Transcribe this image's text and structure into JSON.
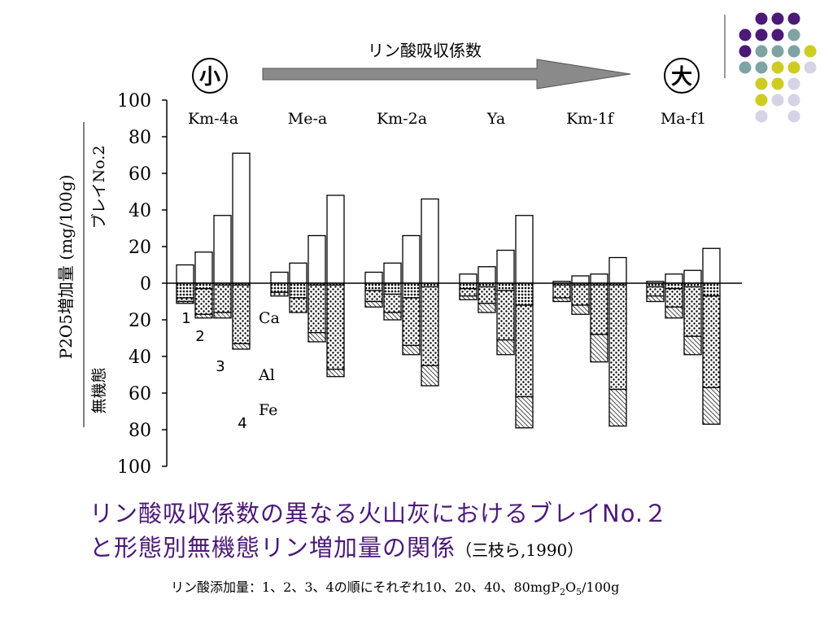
{
  "arrow": {
    "label": "リン酸吸収係数",
    "left_label": "小",
    "right_label": "大"
  },
  "axis": {
    "ylabel": "P2O5増加量 (mg/100g)",
    "upper_label": "ブレイNo.2",
    "lower_label": "無機態",
    "ticks_upper": [
      "100",
      "80",
      "60",
      "40",
      "20",
      "0"
    ],
    "ticks_lower": [
      "20",
      "40",
      "60",
      "80",
      "100"
    ]
  },
  "annotations": {
    "ca": "Ca",
    "al": "Al",
    "fe": "Fe",
    "levels": [
      "1",
      "2",
      "3",
      "4"
    ]
  },
  "chart_data": {
    "type": "bar",
    "title": "リン酸吸収係数の異なる火山灰におけるブレイNo.2と形態別無機態リン増加量の関係",
    "categories": [
      "Km-4a",
      "Me-a",
      "Km-2a",
      "Ya",
      "Km-1f",
      "Ma-f1"
    ],
    "addition_levels": [
      "1",
      "2",
      "3",
      "4"
    ],
    "ylim": [
      -100,
      100
    ],
    "bray_no2": [
      [
        10,
        17,
        37,
        71
      ],
      [
        6,
        11,
        26,
        48
      ],
      [
        6,
        11,
        26,
        46
      ],
      [
        5,
        9,
        18,
        37
      ],
      [
        1,
        4,
        5,
        14
      ],
      [
        1,
        5,
        7,
        19
      ]
    ],
    "ca": [
      [
        -8,
        -3,
        -1,
        -1
      ],
      [
        -5,
        -8,
        -1,
        -1
      ],
      [
        -4,
        -6,
        -8,
        -2
      ],
      [
        -3,
        -2,
        -4,
        -12
      ],
      [
        -1,
        -1,
        -1,
        -1
      ],
      [
        -2,
        -3,
        -2,
        -7
      ]
    ],
    "al": [
      [
        -2,
        -14,
        -15,
        -32
      ],
      [
        -2,
        -8,
        -26,
        -46
      ],
      [
        -6,
        -10,
        -26,
        -43
      ],
      [
        -4,
        -9,
        -27,
        -50
      ],
      [
        -7,
        -11,
        -27,
        -57
      ],
      [
        -5,
        -10,
        -27,
        -50
      ]
    ],
    "fe": [
      [
        -1,
        -2,
        -3,
        -3
      ],
      [
        0,
        0,
        -5,
        -4
      ],
      [
        -3,
        -4,
        -5,
        -11
      ],
      [
        -2,
        -5,
        -8,
        -17
      ],
      [
        -2,
        -5,
        -15,
        -20
      ],
      [
        -3,
        -6,
        -10,
        -20
      ]
    ]
  },
  "caption": {
    "line1": "リン酸吸収係数の異なる火山灰におけるブレイNo.２",
    "line2": "と形態別無機態リン増加量の関係",
    "ref": "（三枝ら,1990）"
  },
  "footnote": {
    "part1": "リン酸添加量：1、2、3、4の順にそれぞれ10、20、40、80mgP",
    "p_sub": "2",
    "o": "O",
    "o_sub": "5",
    "part2": "/100g"
  },
  "colors": {
    "caption": "#4b1a78",
    "dot_purple": "#4b1a78",
    "dot_teal": "#7ea3a3",
    "dot_yellow": "#cccc22",
    "dot_lavender": "#d4d4e6",
    "arrow_fill": "#8a8a8a"
  }
}
